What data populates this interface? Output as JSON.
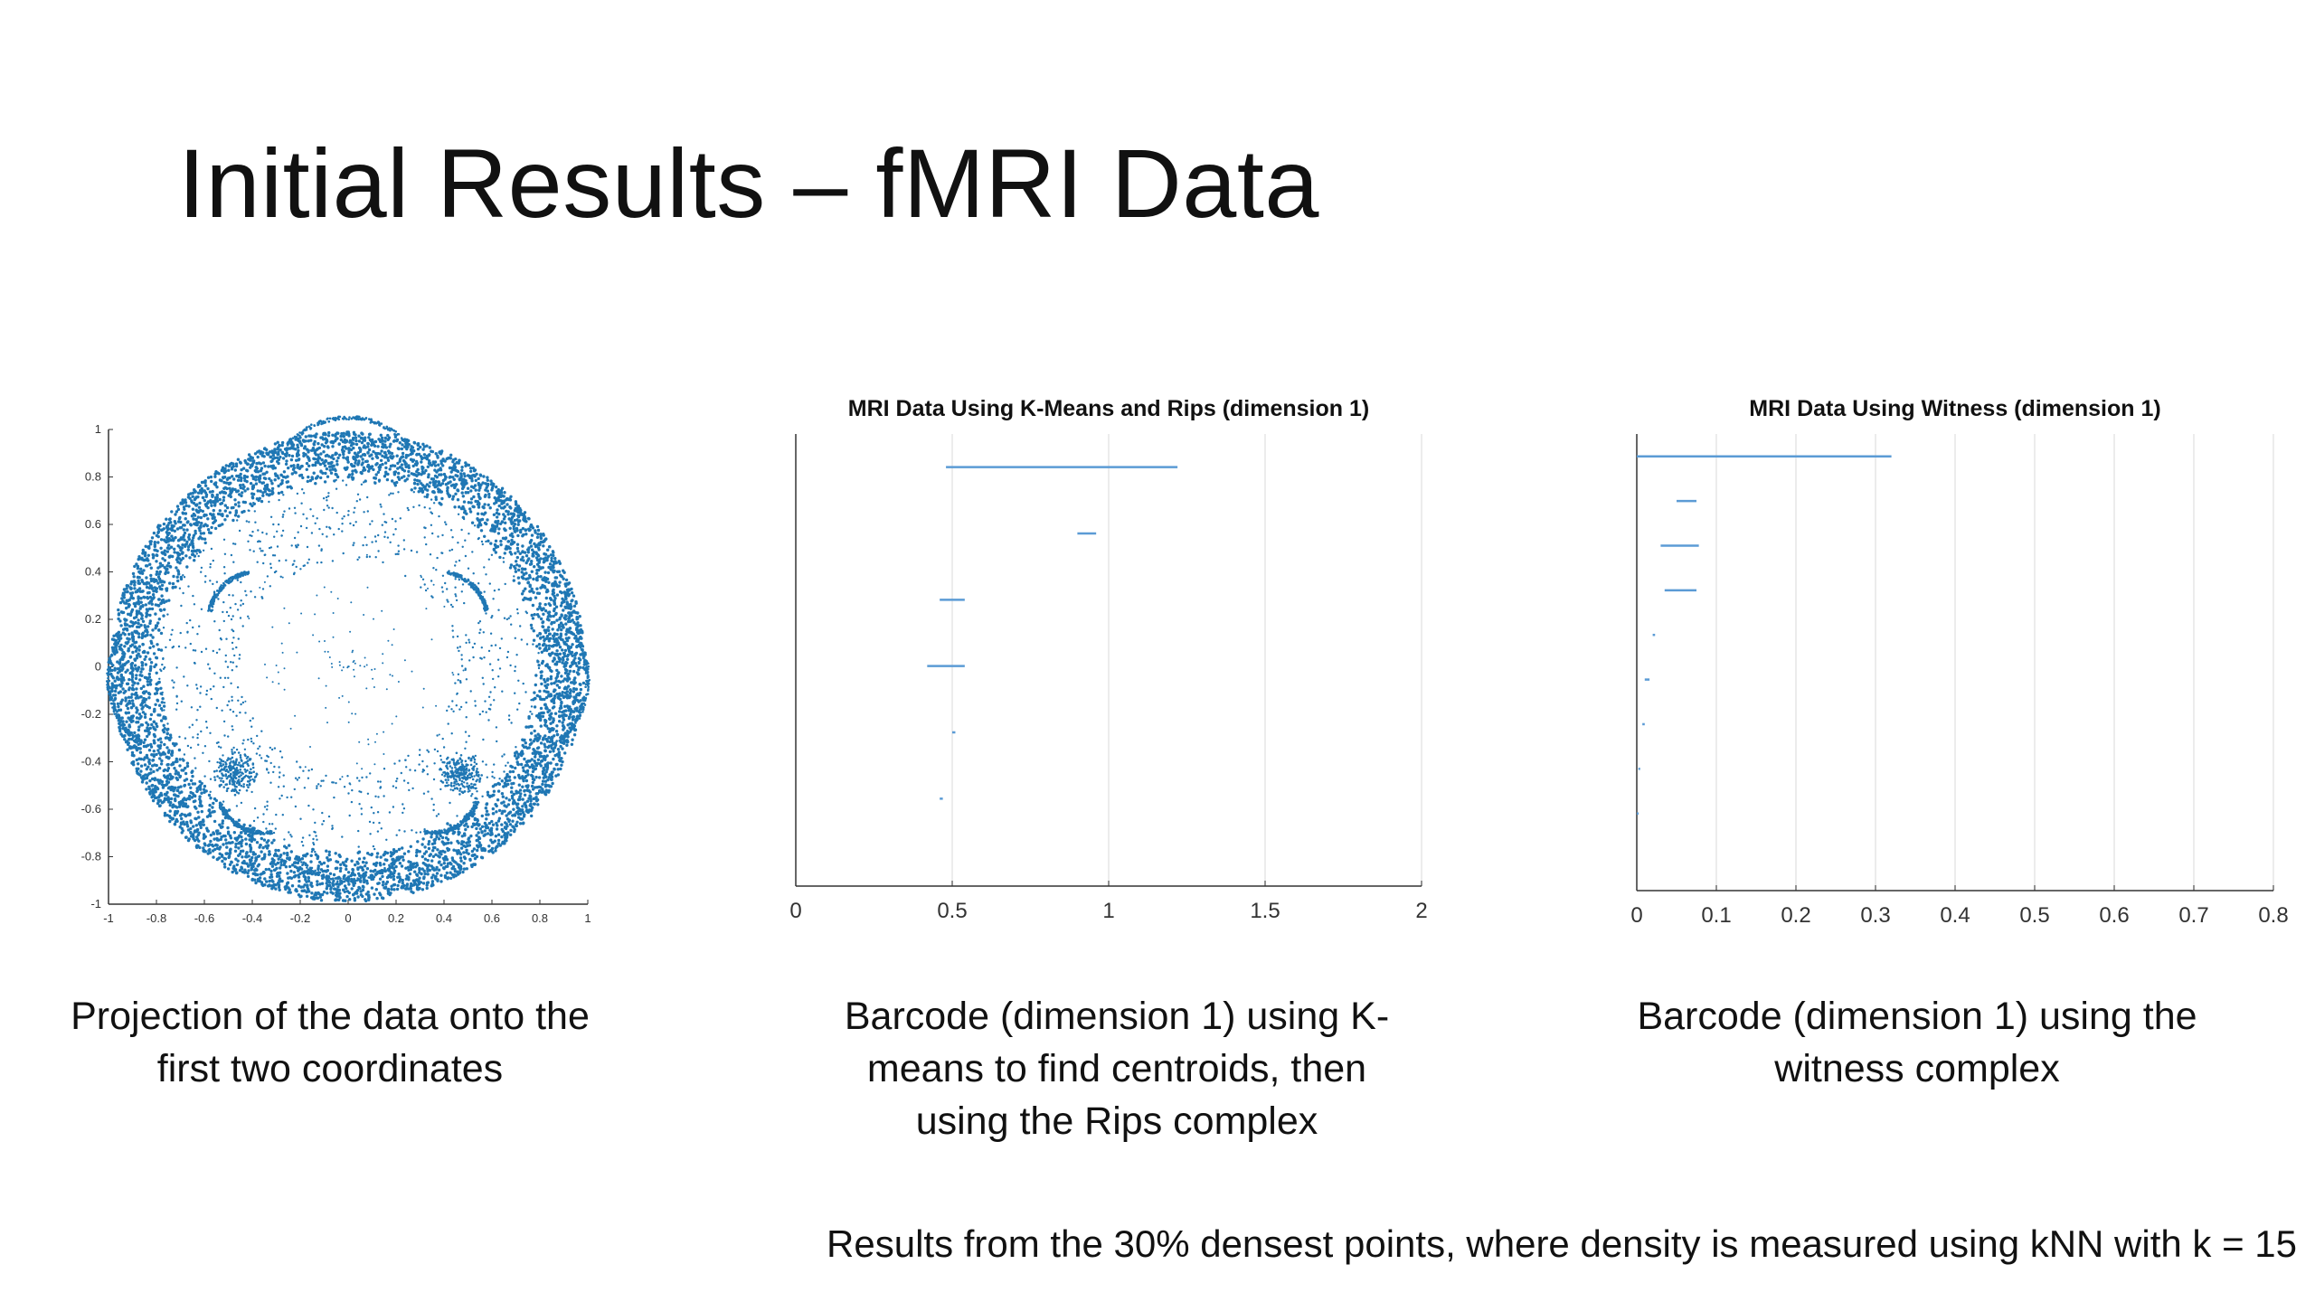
{
  "slide": {
    "title": "Initial Results – fMRI Data",
    "captions": [
      "Projection of the data onto the first two coordinates",
      "Barcode (dimension 1) using K-means to find centroids, then using the Rips complex",
      "Barcode (dimension 1) using the witness complex"
    ],
    "footnote": "Results from the 30% densest points, where density is measured using kNN with k = 15"
  },
  "colors": {
    "accent": "#1f77b4",
    "bar": "#5b9bd5",
    "grid": "#e6e6e6",
    "axis": "#333333"
  },
  "chart_data": [
    {
      "type": "scatter",
      "title": "",
      "xlim": [
        -1,
        1
      ],
      "ylim": [
        -1,
        1
      ],
      "xticks": [
        "-1",
        "-0.8",
        "-0.6",
        "-0.4",
        "-0.2",
        "0",
        "0.2",
        "0.4",
        "0.6",
        "0.8",
        "1"
      ],
      "yticks": [
        "1",
        "0.8",
        "0.6",
        "0.4",
        "0.2",
        "0",
        "-0.2",
        "-0.4",
        "-0.6",
        "-0.8",
        "-1"
      ],
      "structure": {
        "annulus_outer_radius": 0.99,
        "annulus_inner_radius": 0.78,
        "arcs": [
          {
            "center": [
              0,
              0.72
            ],
            "radius": 0.33,
            "from_deg": 40,
            "to_deg": 140
          },
          {
            "center": [
              -0.65,
              -0.05
            ],
            "radius": 0.35,
            "from_deg": 150,
            "to_deg": 230
          },
          {
            "center": [
              0.65,
              -0.05
            ],
            "radius": 0.35,
            "from_deg": -50,
            "to_deg": 30
          },
          {
            "center": [
              0,
              -0.62
            ],
            "radius": 0.28,
            "from_deg": 220,
            "to_deg": 320
          },
          {
            "center": [
              -0.38,
              0.2
            ],
            "radius": 0.2,
            "from_deg": 100,
            "to_deg": 170
          },
          {
            "center": [
              0.38,
              0.2
            ],
            "radius": 0.2,
            "from_deg": 10,
            "to_deg": 80
          },
          {
            "center": [
              -0.35,
              -0.5
            ],
            "radius": 0.2,
            "from_deg": 200,
            "to_deg": 280
          },
          {
            "center": [
              0.35,
              -0.5
            ],
            "radius": 0.2,
            "from_deg": 260,
            "to_deg": 340
          }
        ],
        "clusters": [
          [
            -0.47,
            -0.45
          ],
          [
            0.47,
            -0.45
          ]
        ]
      }
    },
    {
      "type": "barcode",
      "title": "MRI Data Using K-Means and Rips (dimension 1)",
      "xlim": [
        0,
        2
      ],
      "xticks": [
        "0",
        "0.5",
        "1",
        "1.5",
        "2"
      ],
      "bars": [
        {
          "birth": 0.48,
          "death": 1.22
        },
        {
          "birth": 0.9,
          "death": 0.96
        },
        {
          "birth": 0.46,
          "death": 0.54
        },
        {
          "birth": 0.42,
          "death": 0.54
        },
        {
          "birth": 0.5,
          "death": 0.51
        },
        {
          "birth": 0.46,
          "death": 0.47
        }
      ]
    },
    {
      "type": "barcode",
      "title": "MRI Data Using Witness (dimension 1)",
      "xlim": [
        0,
        0.8
      ],
      "xticks": [
        "0",
        "0.1",
        "0.2",
        "0.3",
        "0.4",
        "0.5",
        "0.6",
        "0.7",
        "0.8"
      ],
      "bars": [
        {
          "birth": 0.0,
          "death": 0.32
        },
        {
          "birth": 0.05,
          "death": 0.075
        },
        {
          "birth": 0.03,
          "death": 0.078
        },
        {
          "birth": 0.035,
          "death": 0.075
        },
        {
          "birth": 0.02,
          "death": 0.023
        },
        {
          "birth": 0.01,
          "death": 0.016
        },
        {
          "birth": 0.007,
          "death": 0.01
        },
        {
          "birth": 0.002,
          "death": 0.004
        },
        {
          "birth": 0.0,
          "death": 0.002
        }
      ]
    }
  ]
}
